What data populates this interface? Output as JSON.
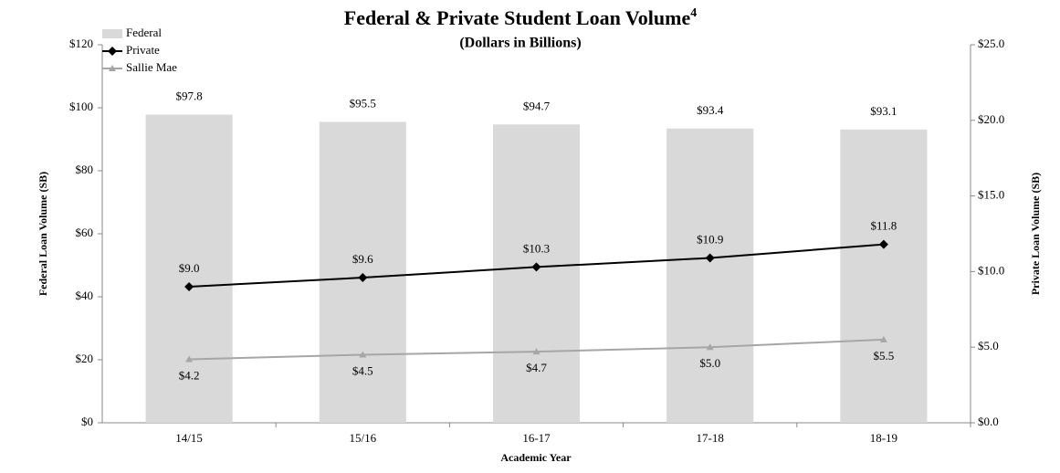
{
  "chart_data": {
    "type": "bar-line",
    "title": "Federal & Private Student Loan Volume",
    "title_footnote": "4",
    "subtitle": "(Dollars in Billions)",
    "x_label": "Academic Year",
    "y_label": "Federal Loan Volume (SB)",
    "y2_label": "Private Loan Volume (SB)",
    "categories": [
      "14/15",
      "15/16",
      "16-17",
      "17-18",
      "18-19"
    ],
    "series": [
      {
        "name": "Federal",
        "kind": "bar",
        "color": "#d9d9d9",
        "axis": "y",
        "label_position": "above",
        "values": [
          97.8,
          95.5,
          94.7,
          93.4,
          93.1
        ],
        "value_labels": [
          "$97.8",
          "$95.5",
          "$94.7",
          "$93.4",
          "$93.1"
        ]
      },
      {
        "name": "Private",
        "kind": "line",
        "color": "#000000",
        "axis": "y2",
        "marker": "diamond",
        "label_position": "above",
        "values": [
          9.0,
          9.6,
          10.3,
          10.9,
          11.8
        ],
        "value_labels": [
          "$9.0",
          "$9.6",
          "$10.3",
          "$10.9",
          "$11.8"
        ]
      },
      {
        "name": "Sallie Mae",
        "kind": "line",
        "color": "#a6a6a6",
        "axis": "y2",
        "marker": "triangle",
        "label_position": "below",
        "values": [
          4.2,
          4.5,
          4.7,
          5.0,
          5.5
        ],
        "value_labels": [
          "$4.2",
          "$4.5",
          "$4.7",
          "$5.0",
          "$5.5"
        ]
      }
    ],
    "ylim": [
      0,
      120
    ],
    "yticks": [
      {
        "value": 0,
        "label": "$0"
      },
      {
        "value": 20,
        "label": "$20"
      },
      {
        "value": 40,
        "label": "$40"
      },
      {
        "value": 60,
        "label": "$60"
      },
      {
        "value": 80,
        "label": "$80"
      },
      {
        "value": 100,
        "label": "$100"
      },
      {
        "value": 120,
        "label": "$120"
      }
    ],
    "y2lim": [
      0,
      25
    ],
    "y2ticks": [
      {
        "value": 0,
        "label": "$0.0"
      },
      {
        "value": 5,
        "label": "$5.0"
      },
      {
        "value": 10,
        "label": "$10.0"
      },
      {
        "value": 15,
        "label": "$15.0"
      },
      {
        "value": 20,
        "label": "$20.0"
      },
      {
        "value": 25,
        "label": "$25.0"
      }
    ],
    "legend": "top-left",
    "grid": false
  }
}
